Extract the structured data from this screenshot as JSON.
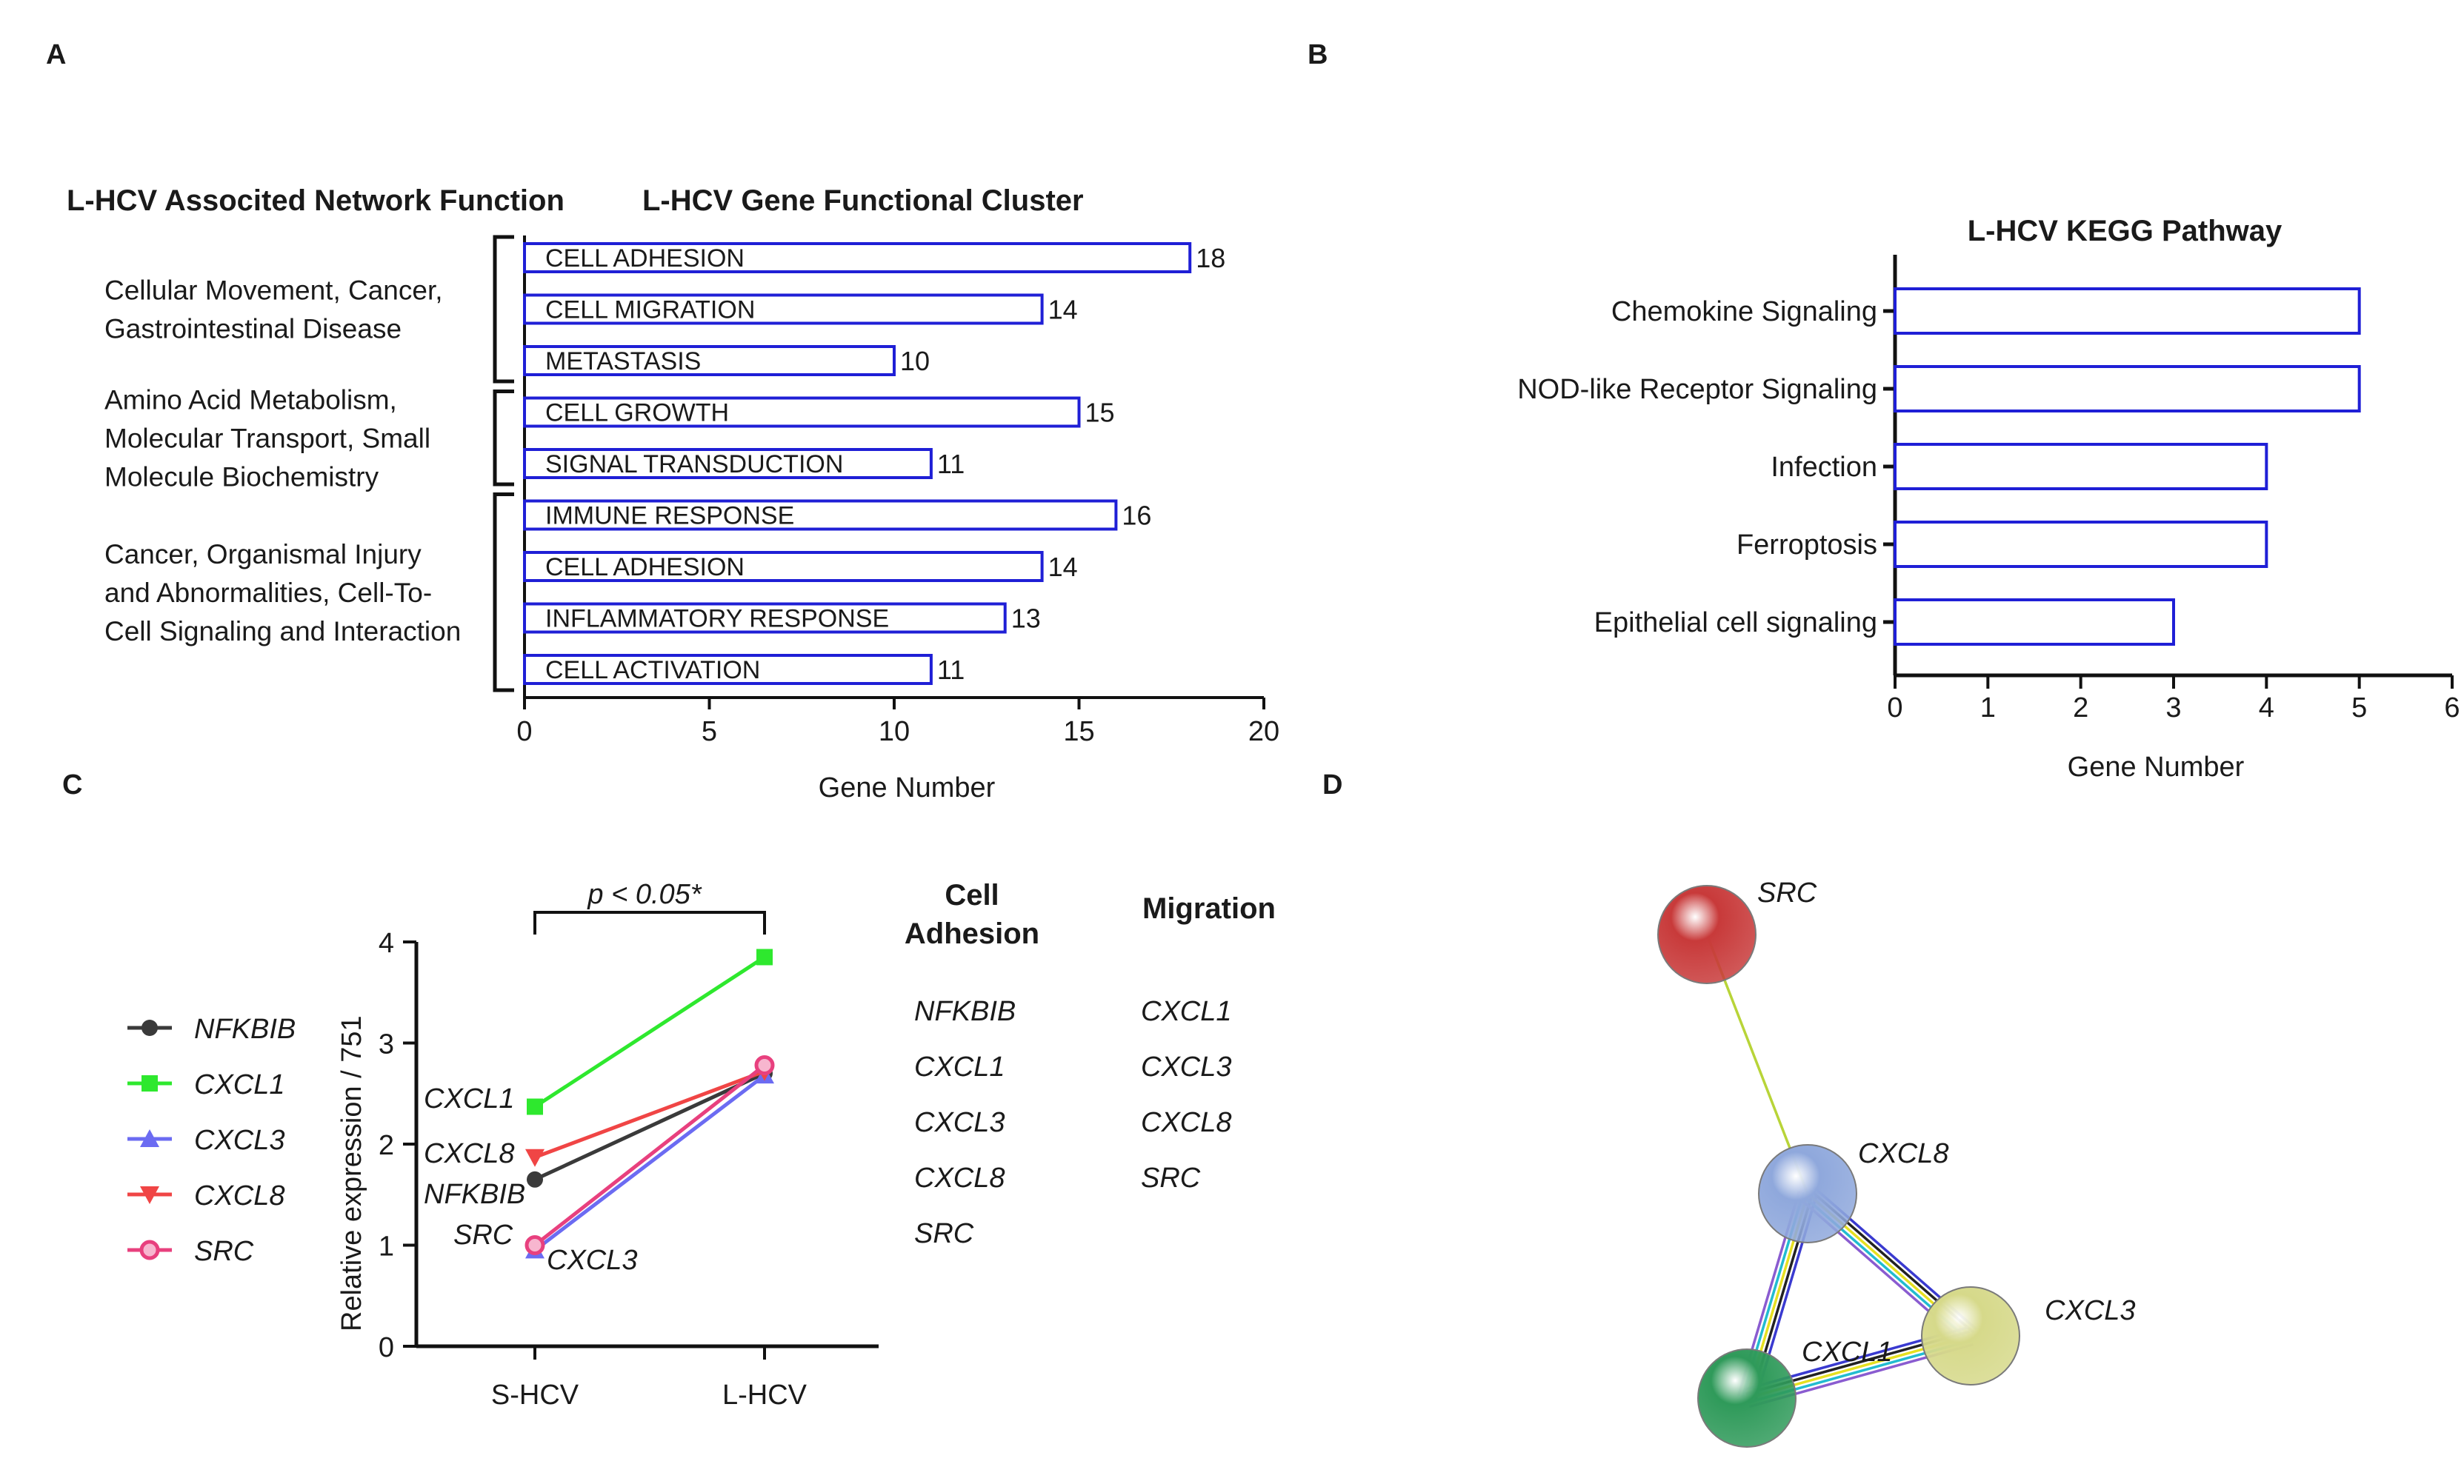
{
  "panel_labels": [
    "A",
    "B",
    "C",
    "D"
  ],
  "chart_data": [
    {
      "panel": "A",
      "type": "bar",
      "orientation": "horizontal",
      "left_heading": "L-HCV Associted Network Function",
      "title": "L-HCV Gene Functional Cluster",
      "xlabel": "Gene Number",
      "xlim": [
        0,
        20
      ],
      "xticks": [
        0,
        5,
        10,
        15,
        20
      ],
      "groups": [
        {
          "lines": [
            "Cellular Movement, Cancer,",
            "Gastrointestinal Disease"
          ],
          "span": [
            0,
            2
          ]
        },
        {
          "lines": [
            "Amino Acid Metabolism,",
            "Molecular Transport, Small",
            "Molecule Biochemistry"
          ],
          "span": [
            3,
            4
          ]
        },
        {
          "lines": [
            "Cancer, Organismal Injury",
            "and Abnormalities, Cell-To-",
            "Cell Signaling and Interaction"
          ],
          "span": [
            5,
            8
          ]
        }
      ],
      "categories": [
        "CELL ADHESION",
        "CELL MIGRATION",
        "METASTASIS",
        "CELL GROWTH",
        "SIGNAL TRANSDUCTION",
        "IMMUNE RESPONSE",
        "CELL ADHESION",
        "INFLAMMATORY RESPONSE",
        "CELL ACTIVATION"
      ],
      "values": [
        18,
        14,
        10,
        15,
        11,
        16,
        14,
        13,
        11
      ],
      "bar_color": "#1f1fd6"
    },
    {
      "panel": "B",
      "type": "bar",
      "orientation": "horizontal",
      "title": "L-HCV KEGG Pathway",
      "xlabel": "Gene Number",
      "xlim": [
        0,
        6
      ],
      "xticks": [
        0,
        1,
        2,
        3,
        4,
        5,
        6
      ],
      "categories": [
        "Chemokine Signaling",
        "NOD-like Receptor Signaling",
        "Infection",
        "Ferroptosis",
        "Epithelial cell signaling"
      ],
      "values": [
        5,
        5,
        4,
        4,
        3
      ],
      "bar_color": "#1f1fd6"
    },
    {
      "panel": "C",
      "type": "line",
      "x": [
        "S-HCV",
        "L-HCV"
      ],
      "ylabel": "Relative expression / 751",
      "ylim": [
        0,
        4
      ],
      "yticks": [
        0,
        1,
        2,
        3,
        4
      ],
      "significance": "p < 0.05*",
      "series": [
        {
          "name": "NFKBIB",
          "values": [
            1.65,
            2.7
          ],
          "color": "#3a3a3a",
          "marker": "circle"
        },
        {
          "name": "CXCL1",
          "values": [
            2.37,
            3.85
          ],
          "color": "#2ee82e",
          "marker": "square"
        },
        {
          "name": "CXCL3",
          "values": [
            0.95,
            2.68
          ],
          "color": "#6b6bf2",
          "marker": "triangle-up"
        },
        {
          "name": "CXCL8",
          "values": [
            1.87,
            2.72
          ],
          "color": "#f04545",
          "marker": "triangle-down"
        },
        {
          "name": "SRC",
          "values": [
            1.0,
            2.78
          ],
          "color": "#e8407e",
          "marker": "ring"
        }
      ],
      "point_labels": [
        "CXCL1",
        "CXCL8",
        "NFKBIB",
        "SRC",
        "CXCL3"
      ]
    }
  ],
  "gene_table": {
    "columns": [
      {
        "header": [
          "Cell",
          "Adhesion"
        ],
        "genes": [
          "NFKBIB",
          "CXCL1",
          "CXCL3",
          "CXCL8",
          "SRC"
        ]
      },
      {
        "header": [
          "Migration"
        ],
        "genes": [
          "CXCL1",
          "CXCL3",
          "CXCL8",
          "SRC"
        ]
      }
    ]
  },
  "network": {
    "nodes": [
      {
        "id": "SRC",
        "label": "SRC",
        "color": "#c83a3a"
      },
      {
        "id": "CXCL8",
        "label": "CXCL8",
        "color": "#8fa8dc"
      },
      {
        "id": "CXCL3",
        "label": "CXCL3",
        "color": "#d6d98a"
      },
      {
        "id": "CXCL1",
        "label": "CXCL1",
        "color": "#2f9a5a"
      }
    ],
    "edges": [
      {
        "from": "SRC",
        "to": "CXCL8",
        "colors": [
          "#b8d438"
        ]
      },
      {
        "from": "CXCL8",
        "to": "CXCL1",
        "colors": [
          "#3a3ad0",
          "#222222",
          "#e6e020",
          "#22bcd0",
          "#8a5cd0"
        ]
      },
      {
        "from": "CXCL8",
        "to": "CXCL3",
        "colors": [
          "#3a3ad0",
          "#222222",
          "#e6e020",
          "#22bcd0",
          "#8a5cd0"
        ]
      },
      {
        "from": "CXCL1",
        "to": "CXCL3",
        "colors": [
          "#3a3ad0",
          "#222222",
          "#e6e020",
          "#22bcd0",
          "#8a5cd0"
        ]
      }
    ]
  }
}
